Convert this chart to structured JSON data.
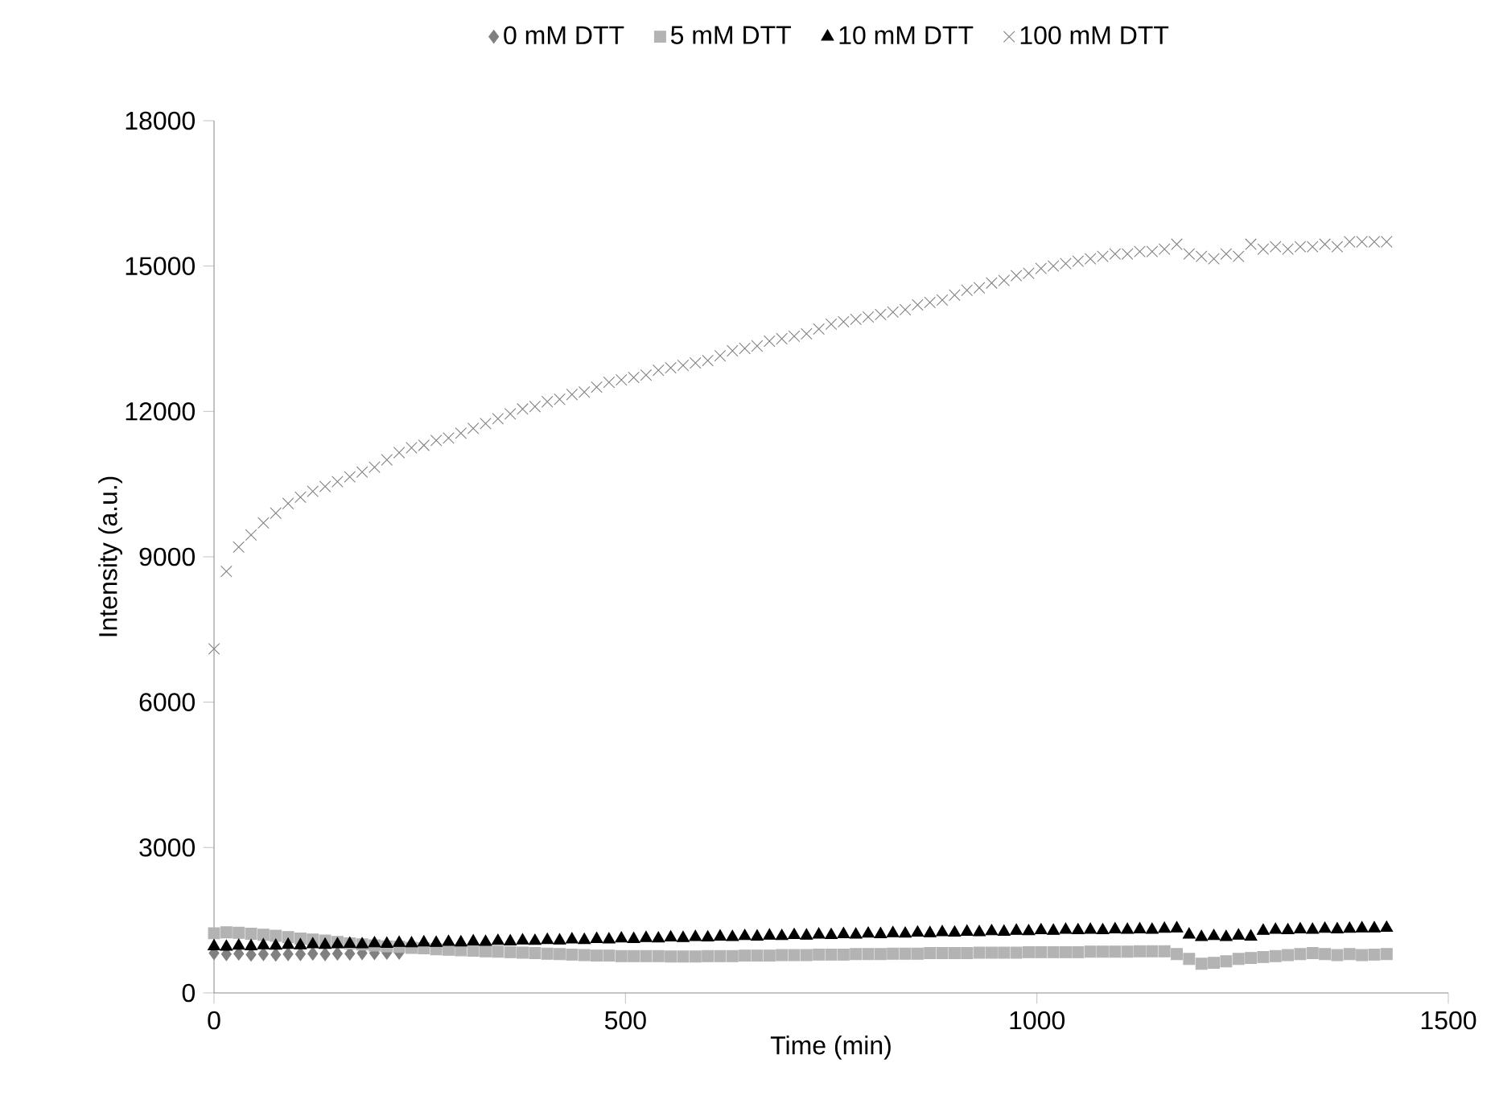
{
  "chart_data": {
    "type": "scatter",
    "xlabel": "Time (min)",
    "ylabel": "Intensity (a.u.)",
    "xlim": [
      0,
      1500
    ],
    "ylim": [
      0,
      18000
    ],
    "xticks": [
      0,
      500,
      1000,
      1500
    ],
    "yticks": [
      0,
      3000,
      6000,
      9000,
      12000,
      15000,
      18000
    ],
    "grid": false,
    "legend": "top",
    "x": [
      0,
      15,
      30,
      45,
      60,
      75,
      90,
      105,
      120,
      135,
      150,
      165,
      180,
      195,
      210,
      225,
      240,
      255,
      270,
      285,
      300,
      315,
      330,
      345,
      360,
      375,
      390,
      405,
      420,
      435,
      450,
      465,
      480,
      495,
      510,
      525,
      540,
      555,
      570,
      585,
      600,
      615,
      630,
      645,
      660,
      675,
      690,
      705,
      720,
      735,
      750,
      765,
      780,
      795,
      810,
      825,
      840,
      855,
      870,
      885,
      900,
      915,
      930,
      945,
      960,
      975,
      990,
      1005,
      1020,
      1035,
      1050,
      1065,
      1080,
      1095,
      1110,
      1125,
      1140,
      1155,
      1170,
      1185,
      1200,
      1215,
      1230,
      1245,
      1260,
      1275,
      1290,
      1305,
      1320,
      1335,
      1350,
      1365,
      1380,
      1395,
      1410,
      1425
    ],
    "series": [
      {
        "name": "0 mM DTT",
        "color": "#808080",
        "marker": "diamond",
        "values": [
          820,
          800,
          810,
          790,
          800,
          790,
          800,
          800,
          810,
          800,
          810,
          810,
          820,
          820,
          830,
          830,
          null,
          null,
          null,
          null,
          null,
          null,
          null,
          null,
          null,
          null,
          null,
          null,
          null,
          null,
          null,
          null,
          null,
          null,
          null,
          null,
          null,
          null,
          null,
          null,
          null,
          null,
          null,
          null,
          null,
          null,
          null,
          null,
          null,
          null,
          null,
          null,
          null,
          null,
          null,
          null,
          null,
          null,
          null,
          null,
          null,
          null,
          null,
          null,
          null,
          null,
          null,
          null,
          null,
          null,
          null,
          null,
          null,
          null,
          null,
          null,
          null,
          null,
          null,
          null,
          null,
          null,
          null,
          null,
          null,
          null,
          null,
          null,
          null,
          null,
          null,
          null,
          null,
          null,
          null,
          null
        ]
      },
      {
        "name": "5 mM DTT",
        "color": "#b3b3b3",
        "marker": "square",
        "values": [
          1230,
          1250,
          1240,
          1220,
          1200,
          1180,
          1150,
          1120,
          1100,
          1080,
          1050,
          1020,
          1000,
          980,
          960,
          950,
          930,
          920,
          900,
          890,
          880,
          870,
          860,
          850,
          840,
          830,
          820,
          810,
          800,
          790,
          780,
          770,
          770,
          760,
          760,
          760,
          760,
          750,
          750,
          750,
          760,
          760,
          760,
          770,
          770,
          770,
          780,
          780,
          780,
          790,
          790,
          790,
          800,
          800,
          800,
          810,
          810,
          810,
          820,
          820,
          820,
          820,
          830,
          830,
          830,
          830,
          840,
          840,
          840,
          840,
          840,
          850,
          850,
          850,
          850,
          860,
          860,
          860,
          800,
          700,
          600,
          620,
          650,
          700,
          720,
          740,
          760,
          780,
          800,
          820,
          800,
          780,
          800,
          780,
          790,
          800
        ]
      },
      {
        "name": "10 mM DTT",
        "color": "#000000",
        "marker": "triangle",
        "values": [
          960,
          950,
          970,
          960,
          980,
          970,
          990,
          980,
          1000,
          990,
          1000,
          1010,
          1000,
          1020,
          1010,
          1030,
          1020,
          1040,
          1030,
          1050,
          1040,
          1060,
          1050,
          1070,
          1060,
          1080,
          1070,
          1090,
          1080,
          1100,
          1090,
          1110,
          1100,
          1120,
          1110,
          1130,
          1120,
          1140,
          1130,
          1150,
          1140,
          1160,
          1150,
          1170,
          1160,
          1180,
          1170,
          1190,
          1180,
          1200,
          1190,
          1210,
          1200,
          1220,
          1210,
          1230,
          1220,
          1240,
          1230,
          1250,
          1240,
          1260,
          1250,
          1270,
          1260,
          1280,
          1270,
          1290,
          1280,
          1300,
          1290,
          1300,
          1290,
          1310,
          1300,
          1310,
          1300,
          1320,
          1330,
          1200,
          1150,
          1170,
          1150,
          1180,
          1160,
          1280,
          1300,
          1290,
          1310,
          1300,
          1320,
          1310,
          1320,
          1330,
          1330,
          1340
        ]
      },
      {
        "name": "100 mM DTT",
        "color": "#808080",
        "marker": "cross",
        "values": [
          7100,
          8700,
          9200,
          9450,
          9700,
          9900,
          10100,
          10230,
          10350,
          10450,
          10550,
          10650,
          10750,
          10850,
          11000,
          11150,
          11250,
          11300,
          11400,
          11450,
          11550,
          11650,
          11750,
          11850,
          11950,
          12050,
          12100,
          12200,
          12250,
          12350,
          12400,
          12500,
          12600,
          12650,
          12700,
          12750,
          12850,
          12900,
          12950,
          13000,
          13050,
          13150,
          13250,
          13300,
          13350,
          13450,
          13500,
          13550,
          13600,
          13700,
          13800,
          13850,
          13900,
          13950,
          14000,
          14050,
          14100,
          14200,
          14250,
          14300,
          14400,
          14500,
          14550,
          14650,
          14700,
          14800,
          14850,
          14950,
          15000,
          15050,
          15100,
          15150,
          15200,
          15250,
          15250,
          15300,
          15300,
          15350,
          15450,
          15250,
          15200,
          15150,
          15250,
          15200,
          15450,
          15350,
          15400,
          15350,
          15400,
          15400,
          15450,
          15400,
          15500,
          15500,
          15500,
          15500
        ]
      }
    ]
  }
}
